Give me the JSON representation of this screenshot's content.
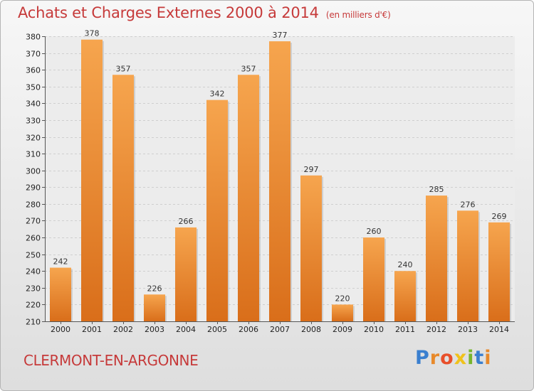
{
  "title": "Achats et Charges Externes 2000 à 2014",
  "unit": "(en milliers d'€)",
  "commune": "CLERMONT-EN-ARGONNE",
  "brand": {
    "letters": [
      "P",
      "r",
      "o",
      "x",
      "i",
      "t",
      "i"
    ],
    "colors": [
      "#3a7fcf",
      "#e8892a",
      "#e84f2a",
      "#f0c21b",
      "#77b52c",
      "#3a7fcf",
      "#e8892a"
    ]
  },
  "colors": {
    "bar_top": "#f6a54e",
    "bar_bottom": "#d96e1a",
    "title": "#c63a3a"
  },
  "chart_data": {
    "type": "bar",
    "categories": [
      "2000",
      "2001",
      "2002",
      "2003",
      "2004",
      "2005",
      "2006",
      "2007",
      "2008",
      "2009",
      "2010",
      "2011",
      "2012",
      "2013",
      "2014"
    ],
    "values": [
      242,
      378,
      357,
      226,
      266,
      342,
      357,
      377,
      297,
      220,
      260,
      240,
      285,
      276,
      269
    ],
    "ylim": [
      210,
      380
    ],
    "yticks": [
      210,
      220,
      230,
      240,
      250,
      260,
      270,
      280,
      290,
      300,
      310,
      320,
      330,
      340,
      350,
      360,
      370,
      380
    ],
    "grid": true
  }
}
